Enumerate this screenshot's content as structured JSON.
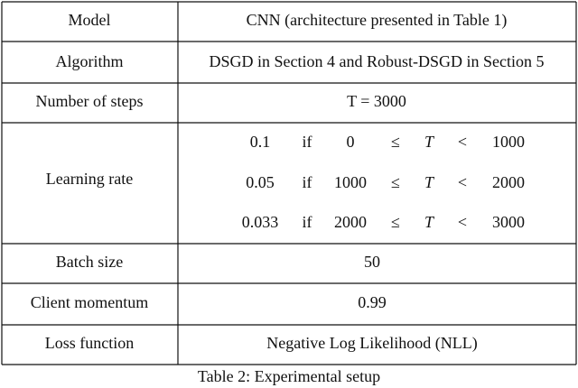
{
  "table": {
    "rows": [
      [
        "Model",
        "CNN (architecture presented in Table 1)"
      ],
      [
        "Algorithm",
        "DSGD in Section 4 and Robust-DSGD in Section 5"
      ],
      [
        "Number of steps",
        "T = 3000"
      ],
      [
        "Learning rate",
        [
          [
            "0.1",
            "if",
            "0",
            "≤",
            "T",
            "<",
            "1000"
          ],
          [
            "0.05",
            "if",
            "1000",
            "≤",
            "T",
            "<",
            "2000"
          ],
          [
            "0.033",
            "if",
            "2000",
            "≤",
            "T",
            "<",
            "3000"
          ]
        ]
      ],
      [
        "Batch size",
        "50"
      ],
      [
        "Client momentum",
        "0.99"
      ],
      [
        "Loss function",
        "Negative Log Likelihood (NLL)"
      ]
    ],
    "caption": "Table 2: Experimental setup"
  }
}
